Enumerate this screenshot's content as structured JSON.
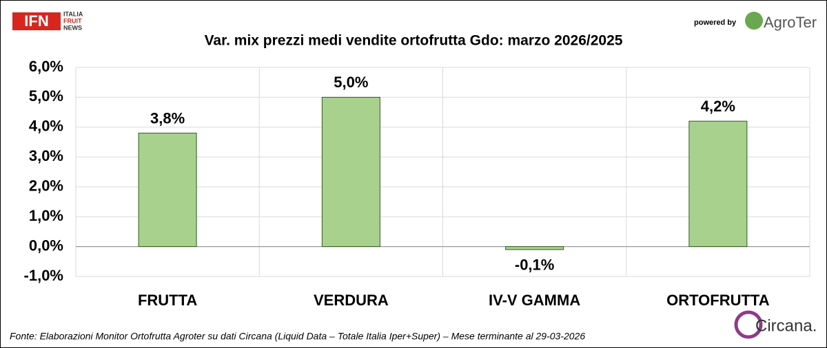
{
  "chart_data": {
    "type": "bar",
    "title": "Var. mix prezzi medi vendite ortofrutta Gdo: marzo 2026/2025",
    "categories": [
      "FRUTTA",
      "VERDURA",
      "IV-V GAMMA",
      "ORTOFRUTTA"
    ],
    "values": [
      3.8,
      5.0,
      -0.1,
      4.2
    ],
    "value_labels": [
      "3,8%",
      "5,0%",
      "-0,1%",
      "4,2%"
    ],
    "color": "#a9d18e",
    "ylim": [
      -1,
      6
    ],
    "yticks": [
      {
        "value": -1,
        "label": "-1,0%"
      },
      {
        "value": 0,
        "label": "0,0%"
      },
      {
        "value": 1,
        "label": "1,0%"
      },
      {
        "value": 2,
        "label": "2,0%"
      },
      {
        "value": 3,
        "label": "3,0%"
      },
      {
        "value": 4,
        "label": "4,0%"
      },
      {
        "value": 5,
        "label": "5,0%"
      },
      {
        "value": 6,
        "label": "6,0%"
      }
    ],
    "grid": true,
    "source": "Fonte: Elaborazioni Monitor Ortofrutta Agroter su dati Circana (Liquid Data – Totale Italia Iper+Super) – Mese terminante al 29-03-2026"
  },
  "branding": {
    "ifn": "IFN",
    "ifn_lines": [
      "ITALIA",
      "FRUIT",
      "NEWS"
    ],
    "powered_by": "powered by",
    "agroter": "AgroTer",
    "circana": "Circana."
  }
}
